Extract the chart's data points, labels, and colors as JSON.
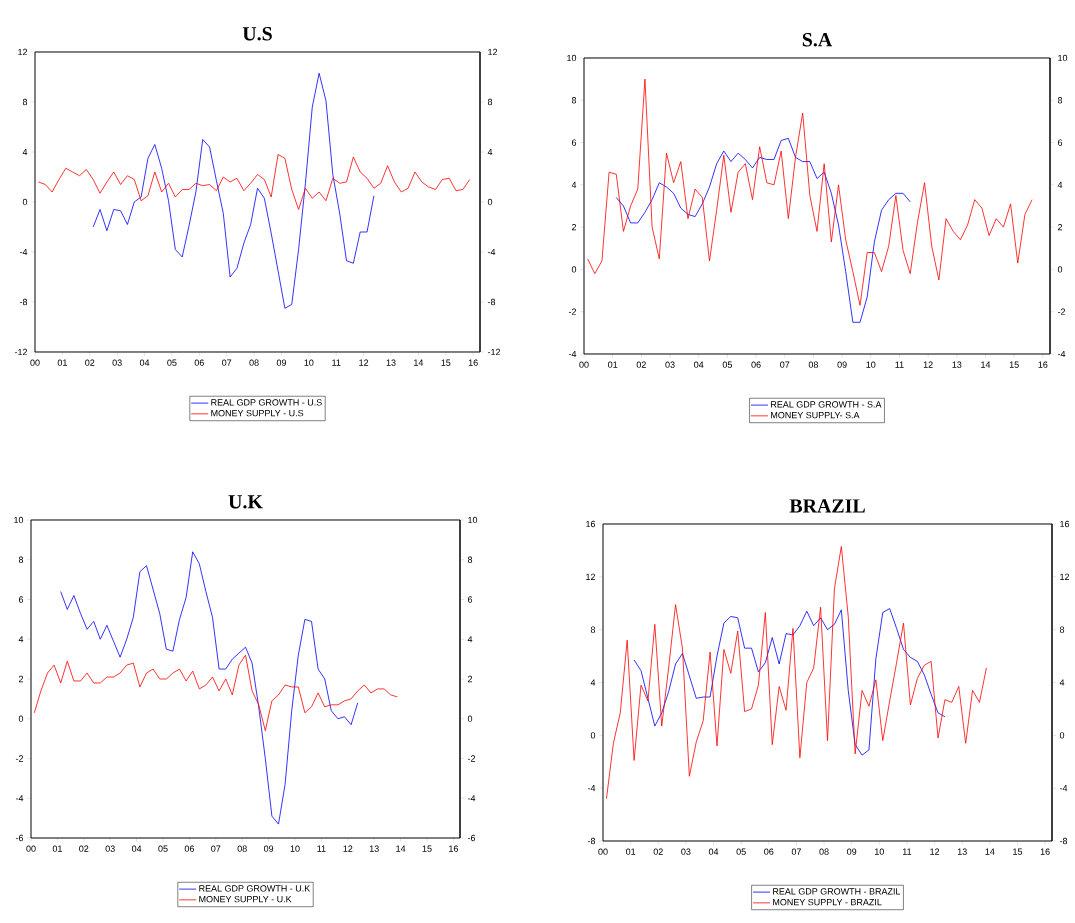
{
  "chart_data": [
    {
      "type": "line",
      "title": "U.S",
      "legend": "bottom",
      "marker": "none",
      "x": [
        0.125,
        0.375,
        0.625,
        0.875,
        1.125,
        1.375,
        1.625,
        1.875,
        2.125,
        2.375,
        2.625,
        2.875,
        3.125,
        3.375,
        3.625,
        3.875,
        4.125,
        4.375,
        4.625,
        4.875,
        5.125,
        5.375,
        5.625,
        5.875,
        6.125,
        6.375,
        6.625,
        6.875,
        7.125,
        7.375,
        7.625,
        7.875,
        8.125,
        8.375,
        8.625,
        8.875,
        9.125,
        9.375,
        9.625,
        9.875,
        10.125,
        10.375,
        10.625,
        10.875,
        11.125,
        11.375,
        11.625,
        11.875,
        12.125,
        12.375,
        12.625,
        12.875,
        13.125,
        13.375,
        13.625,
        13.875,
        14.125,
        14.375,
        14.625,
        14.875,
        15.125,
        15.375,
        15.625,
        15.875
      ],
      "series": [
        {
          "name": "REAL GDP GROWTH - U.S",
          "color": "#0000ff",
          "values": [
            null,
            null,
            null,
            null,
            null,
            null,
            null,
            null,
            -2.0,
            -0.6,
            -2.3,
            -0.6,
            -0.7,
            -1.8,
            0.0,
            0.4,
            3.5,
            4.6,
            2.7,
            0.1,
            -3.8,
            -4.4,
            -1.9,
            0.8,
            5.0,
            4.4,
            1.7,
            -0.9,
            -6.0,
            -5.3,
            -3.3,
            -1.8,
            1.1,
            0.3,
            -2.5,
            -5.5,
            -8.5,
            -8.2,
            -3.8,
            1.5,
            7.6,
            10.3,
            8.1,
            2.2,
            -0.9,
            -4.7,
            -4.9,
            -2.4,
            -2.4,
            0.5,
            null,
            null,
            null,
            null,
            null,
            null,
            null,
            null,
            null,
            null,
            null,
            null,
            null,
            null
          ]
        },
        {
          "name": "MONEY SUPPLY - U.S",
          "color": "#ff0000",
          "values": [
            1.6,
            1.4,
            0.8,
            1.8,
            2.7,
            2.4,
            2.1,
            2.6,
            1.8,
            0.7,
            1.6,
            2.4,
            1.4,
            2.1,
            1.8,
            0.1,
            0.5,
            2.4,
            0.8,
            1.5,
            0.4,
            1.0,
            1.0,
            1.5,
            1.3,
            1.4,
            0.9,
            2.0,
            1.6,
            1.9,
            0.9,
            1.5,
            2.2,
            1.8,
            0.4,
            3.8,
            3.5,
            1.0,
            -0.6,
            1.1,
            0.3,
            0.8,
            0.1,
            1.9,
            1.5,
            1.6,
            3.6,
            2.4,
            1.9,
            1.1,
            1.5,
            2.9,
            1.6,
            0.8,
            1.1,
            2.4,
            1.6,
            1.2,
            1.0,
            1.8,
            1.9,
            0.9,
            1.0,
            1.8
          ]
        }
      ],
      "xlim": [
        0,
        16.25
      ],
      "xticks": [
        {
          "value": 0,
          "label": "00"
        },
        {
          "value": 1,
          "label": "01"
        },
        {
          "value": 2,
          "label": "02"
        },
        {
          "value": 3,
          "label": "03"
        },
        {
          "value": 4,
          "label": "04"
        },
        {
          "value": 5,
          "label": "05"
        },
        {
          "value": 6,
          "label": "06"
        },
        {
          "value": 7,
          "label": "07"
        },
        {
          "value": 8,
          "label": "08"
        },
        {
          "value": 9,
          "label": "09"
        },
        10,
        11,
        12,
        13,
        14,
        15,
        16
      ],
      "ylim": [
        -12,
        12
      ],
      "yticks": [
        -12,
        -8,
        -4,
        0,
        4,
        8,
        12
      ],
      "y2lim": [
        -12,
        12
      ],
      "y2ticks": [
        -12,
        -8,
        -4,
        0,
        4,
        8,
        12
      ]
    },
    {
      "type": "line",
      "title": "S.A",
      "legend": "bottom",
      "marker": "none",
      "x": [
        0.125,
        0.375,
        0.625,
        0.875,
        1.125,
        1.375,
        1.625,
        1.875,
        2.125,
        2.375,
        2.625,
        2.875,
        3.125,
        3.375,
        3.625,
        3.875,
        4.125,
        4.375,
        4.625,
        4.875,
        5.125,
        5.375,
        5.625,
        5.875,
        6.125,
        6.375,
        6.625,
        6.875,
        7.125,
        7.375,
        7.625,
        7.875,
        8.125,
        8.375,
        8.625,
        8.875,
        9.125,
        9.375,
        9.625,
        9.875,
        10.125,
        10.375,
        10.625,
        10.875,
        11.125,
        11.375,
        11.625,
        11.875,
        12.125,
        12.375,
        12.625,
        12.875,
        13.125,
        13.375,
        13.625,
        13.875,
        14.125,
        14.375,
        14.625,
        14.875,
        15.125,
        15.375,
        15.625
      ],
      "series": [
        {
          "name": "REAL GDP GROWTH - S.A",
          "color": "#0000ff",
          "values": [
            null,
            null,
            null,
            null,
            3.4,
            3.0,
            2.2,
            2.2,
            2.7,
            3.3,
            4.1,
            3.9,
            3.6,
            2.9,
            2.6,
            2.5,
            3.1,
            3.9,
            5.0,
            5.6,
            5.1,
            5.5,
            5.2,
            4.8,
            5.3,
            5.2,
            5.2,
            6.1,
            6.2,
            5.3,
            5.1,
            5.1,
            4.3,
            4.6,
            3.6,
            2.1,
            -0.1,
            -2.5,
            -2.5,
            -1.3,
            1.3,
            2.8,
            3.3,
            3.6,
            3.6,
            3.2,
            null,
            null,
            null,
            null,
            null,
            null,
            null,
            null,
            null,
            null,
            null,
            null,
            null,
            null,
            null,
            null,
            null
          ]
        },
        {
          "name": "MONEY SUPPLY- S.A",
          "color": "#ff0000",
          "values": [
            0.5,
            -0.2,
            0.4,
            4.6,
            4.5,
            1.8,
            3.0,
            3.8,
            9.0,
            2.0,
            0.5,
            5.5,
            4.1,
            5.1,
            2.4,
            3.8,
            3.4,
            0.4,
            2.8,
            5.4,
            2.7,
            4.6,
            5.0,
            3.3,
            5.8,
            4.1,
            4.0,
            5.6,
            2.4,
            5.3,
            7.4,
            3.5,
            1.8,
            5.0,
            1.3,
            4.0,
            1.4,
            -0.1,
            -1.7,
            0.8,
            0.8,
            -0.1,
            1.1,
            3.5,
            0.9,
            -0.2,
            2.2,
            4.1,
            1.1,
            -0.5,
            2.4,
            1.8,
            1.4,
            2.1,
            3.3,
            2.9,
            1.6,
            2.4,
            2.0,
            3.1,
            0.3,
            2.6,
            3.3
          ]
        }
      ],
      "xlim": [
        0,
        16.25
      ],
      "xticks": [
        {
          "value": 0,
          "label": "00"
        },
        {
          "value": 1,
          "label": "01"
        },
        {
          "value": 2,
          "label": "02"
        },
        {
          "value": 3,
          "label": "03"
        },
        {
          "value": 4,
          "label": "04"
        },
        {
          "value": 5,
          "label": "05"
        },
        {
          "value": 6,
          "label": "06"
        },
        {
          "value": 7,
          "label": "07"
        },
        {
          "value": 8,
          "label": "08"
        },
        {
          "value": 9,
          "label": "09"
        },
        10,
        11,
        12,
        13,
        14,
        15,
        16
      ],
      "ylim": [
        -4,
        10
      ],
      "yticks": [
        -4,
        -2,
        0,
        2,
        4,
        6,
        8,
        10
      ],
      "y2lim": [
        -4,
        10
      ],
      "y2ticks": [
        -4,
        -2,
        0,
        2,
        4,
        6,
        8,
        10
      ]
    },
    {
      "type": "line",
      "title": "U.K",
      "legend": "bottom",
      "marker": "none",
      "x": [
        0.125,
        0.375,
        0.625,
        0.875,
        1.125,
        1.375,
        1.625,
        1.875,
        2.125,
        2.375,
        2.625,
        2.875,
        3.125,
        3.375,
        3.625,
        3.875,
        4.125,
        4.375,
        4.625,
        4.875,
        5.125,
        5.375,
        5.625,
        5.875,
        6.125,
        6.375,
        6.625,
        6.875,
        7.125,
        7.375,
        7.625,
        7.875,
        8.125,
        8.375,
        8.625,
        8.875,
        9.125,
        9.375,
        9.625,
        9.875,
        10.125,
        10.375,
        10.625,
        10.875,
        11.125,
        11.375,
        11.625,
        11.875,
        12.125,
        12.375,
        12.625,
        12.875,
        13.125,
        13.375,
        13.625,
        13.875
      ],
      "series": [
        {
          "name": "REAL GDP GROWTH - U.K",
          "color": "#0000ff",
          "values": [
            null,
            null,
            null,
            null,
            6.4,
            5.5,
            6.2,
            5.3,
            4.5,
            4.9,
            4.0,
            4.7,
            3.9,
            3.1,
            4.0,
            5.1,
            7.4,
            7.7,
            6.5,
            5.3,
            3.5,
            3.4,
            5.0,
            6.1,
            8.4,
            7.8,
            6.4,
            5.1,
            2.5,
            2.5,
            3.0,
            3.3,
            3.6,
            2.8,
            0.6,
            -2.0,
            -4.9,
            -5.3,
            -3.3,
            0.4,
            3.2,
            5.0,
            4.9,
            2.5,
            2.0,
            0.4,
            0.0,
            0.1,
            -0.3,
            0.8,
            null,
            null,
            null,
            null,
            null,
            null
          ]
        },
        {
          "name": "MONEY SUPPLY - U.K",
          "color": "#ff0000",
          "values": [
            0.3,
            1.4,
            2.3,
            2.7,
            1.8,
            2.9,
            1.9,
            1.9,
            2.3,
            1.8,
            1.8,
            2.1,
            2.1,
            2.3,
            2.7,
            2.8,
            1.6,
            2.3,
            2.5,
            2.0,
            2.0,
            2.3,
            2.5,
            1.9,
            2.4,
            1.5,
            1.7,
            2.1,
            1.4,
            2.0,
            1.2,
            2.7,
            3.2,
            1.4,
            0.7,
            -0.6,
            0.9,
            1.2,
            1.7,
            1.6,
            1.6,
            0.3,
            0.6,
            1.3,
            0.6,
            0.7,
            0.7,
            0.9,
            1.0,
            1.4,
            1.7,
            1.3,
            1.5,
            1.5,
            1.2,
            1.1
          ]
        }
      ],
      "xlim": [
        0,
        16.25
      ],
      "xticks": [
        {
          "value": 0,
          "label": "00"
        },
        {
          "value": 1,
          "label": "01"
        },
        {
          "value": 2,
          "label": "02"
        },
        {
          "value": 3,
          "label": "03"
        },
        {
          "value": 4,
          "label": "04"
        },
        {
          "value": 5,
          "label": "05"
        },
        {
          "value": 6,
          "label": "06"
        },
        {
          "value": 7,
          "label": "07"
        },
        {
          "value": 8,
          "label": "08"
        },
        {
          "value": 9,
          "label": "09"
        },
        10,
        11,
        12,
        13,
        14,
        15,
        16
      ],
      "ylim": [
        -6,
        10
      ],
      "yticks": [
        -6,
        -4,
        -2,
        0,
        2,
        4,
        6,
        8,
        10
      ],
      "y2lim": [
        -6,
        10
      ],
      "y2ticks": [
        -6,
        -4,
        -2,
        0,
        2,
        4,
        6,
        8,
        10
      ]
    },
    {
      "type": "line",
      "title": "BRAZIL",
      "legend": "bottom",
      "marker": "none",
      "x": [
        0.125,
        0.375,
        0.625,
        0.875,
        1.125,
        1.375,
        1.625,
        1.875,
        2.125,
        2.375,
        2.625,
        2.875,
        3.125,
        3.375,
        3.625,
        3.875,
        4.125,
        4.375,
        4.625,
        4.875,
        5.125,
        5.375,
        5.625,
        5.875,
        6.125,
        6.375,
        6.625,
        6.875,
        7.125,
        7.375,
        7.625,
        7.875,
        8.125,
        8.375,
        8.625,
        8.875,
        9.125,
        9.375,
        9.625,
        9.875,
        10.125,
        10.375,
        10.625,
        10.875,
        11.125,
        11.375,
        11.625,
        11.875,
        12.125,
        12.375,
        12.625,
        12.875,
        13.125,
        13.375,
        13.625,
        13.875
      ],
      "series": [
        {
          "name": "REAL GDP GROWTH - BRAZIL",
          "color": "#0000ff",
          "values": [
            null,
            null,
            null,
            null,
            5.7,
            4.9,
            2.8,
            0.7,
            1.7,
            3.3,
            5.4,
            6.2,
            4.5,
            2.8,
            2.9,
            2.9,
            6.0,
            8.5,
            9.0,
            8.9,
            6.6,
            6.6,
            4.8,
            5.5,
            7.4,
            5.4,
            7.7,
            7.6,
            8.3,
            9.4,
            8.3,
            8.9,
            8.0,
            8.4,
            9.5,
            3.4,
            -0.7,
            -1.5,
            -1.1,
            5.8,
            9.3,
            9.6,
            8.1,
            6.5,
            5.9,
            5.6,
            4.6,
            3.1,
            1.7,
            1.4,
            null,
            null,
            null,
            null,
            null,
            null
          ]
        },
        {
          "name": "MONEY SUPPLY - BRAZIL",
          "color": "#ff0000",
          "values": [
            -4.8,
            -0.6,
            1.7,
            7.2,
            -1.9,
            3.8,
            2.6,
            8.4,
            0.7,
            5.1,
            9.9,
            6.6,
            -3.1,
            -0.5,
            1.1,
            6.3,
            -0.8,
            6.5,
            4.7,
            7.9,
            1.8,
            2.0,
            3.8,
            9.3,
            -0.7,
            3.7,
            1.9,
            8.1,
            -1.7,
            4.0,
            5.1,
            9.7,
            -0.4,
            11.1,
            14.3,
            9.0,
            -1.4,
            3.4,
            2.2,
            4.2,
            -0.4,
            2.6,
            5.5,
            8.5,
            2.3,
            4.3,
            5.3,
            5.6,
            -0.2,
            2.7,
            2.5,
            3.7,
            -0.6,
            3.4,
            2.5,
            5.1
          ]
        }
      ],
      "xlim": [
        0,
        16.25
      ],
      "xticks": [
        {
          "value": 0,
          "label": "00"
        },
        {
          "value": 1,
          "label": "01"
        },
        {
          "value": 2,
          "label": "02"
        },
        {
          "value": 3,
          "label": "03"
        },
        {
          "value": 4,
          "label": "04"
        },
        {
          "value": 5,
          "label": "05"
        },
        {
          "value": 6,
          "label": "06"
        },
        {
          "value": 7,
          "label": "07"
        },
        {
          "value": 8,
          "label": "08"
        },
        {
          "value": 9,
          "label": "09"
        },
        10,
        11,
        12,
        13,
        14,
        15,
        16
      ],
      "ylim": [
        -8,
        16
      ],
      "yticks": [
        -8,
        -4,
        0,
        4,
        8,
        12,
        16
      ],
      "y2lim": [
        -8,
        16
      ],
      "y2ticks": [
        -8,
        -4,
        0,
        4,
        8,
        12,
        16
      ]
    }
  ]
}
